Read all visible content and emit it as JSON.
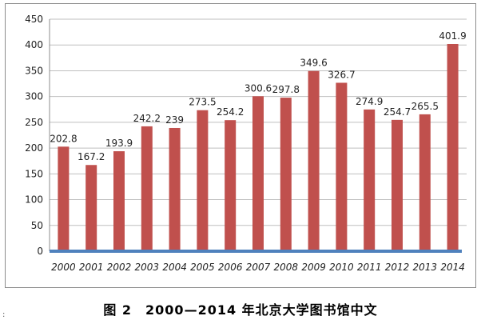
{
  "caption": "图 2　2000—2014 年北京大学图书馆中文",
  "chart_data": {
    "type": "bar",
    "categories": [
      "2000",
      "2001",
      "2002",
      "2003",
      "2004",
      "2005",
      "2006",
      "2007",
      "2008",
      "2009",
      "2010",
      "2011",
      "2012",
      "2013",
      "2014"
    ],
    "values": [
      202.8,
      167.2,
      193.9,
      242.2,
      239,
      273.5,
      254.2,
      300.6,
      297.8,
      349.6,
      326.7,
      274.9,
      254.7,
      265.5,
      401.9
    ],
    "value_labels": [
      "202.8",
      "167.2",
      "193.9",
      "242.2",
      "239",
      "273.5",
      "254.2",
      "300.6",
      "297.8",
      "349.6",
      "326.7",
      "274.9",
      "254.7",
      "265.5",
      "401.9"
    ],
    "ylim": [
      0,
      450
    ],
    "yticks": [
      0,
      50,
      100,
      150,
      200,
      250,
      300,
      350,
      400,
      450
    ],
    "ytick_labels": [
      "0",
      "50",
      "100",
      "150",
      "200",
      "250",
      "300",
      "350",
      "400",
      "450"
    ],
    "grid": true,
    "legend": false,
    "colors": {
      "bar": "#c0504d",
      "baseline": "#4f81bd",
      "grid": "#bfbfbf"
    }
  }
}
